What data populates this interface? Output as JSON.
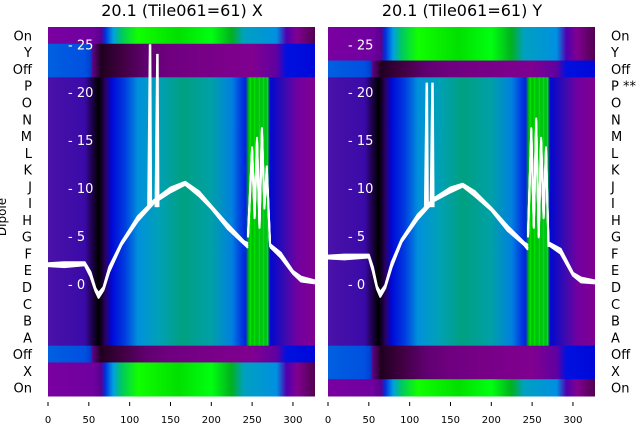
{
  "chart_data": [
    {
      "type": "heatmap",
      "title": "20.1 (Tile061=61) X",
      "ylabel": "Dipole",
      "row_labels": [
        "On",
        "Y",
        "Off",
        "P",
        "O",
        "N",
        "M",
        "L",
        "K",
        "J",
        "I",
        "H",
        "G",
        "F",
        "E",
        "D",
        "C",
        "B",
        "A",
        "Off",
        "X",
        "On"
      ],
      "row_kinds": [
        "on",
        "off",
        "off",
        "main",
        "main",
        "main",
        "main",
        "main",
        "main",
        "main",
        "main",
        "main",
        "main",
        "main",
        "main",
        "main",
        "main",
        "main",
        "main",
        "off",
        "on",
        "on"
      ],
      "x_ticks": [
        0,
        50,
        100,
        150,
        200,
        250,
        300
      ],
      "xlim": [
        0,
        327
      ],
      "inner_y_ticks": [
        0,
        5,
        10,
        15,
        20,
        25
      ],
      "inner_ylim": [
        -11.7,
        26.8
      ],
      "overlay_lines": [
        {
          "x": [
            0,
            20,
            45,
            52,
            58,
            62,
            68,
            75,
            90,
            110,
            130,
            150,
            168,
            185,
            200,
            220,
            240,
            245
          ],
          "y": [
            2.0,
            2.0,
            2.1,
            1.0,
            -0.6,
            -1.2,
            -0.5,
            1.5,
            4.2,
            6.8,
            8.6,
            9.8,
            10.5,
            9.4,
            8.0,
            6.0,
            4.3,
            4.0
          ]
        },
        {
          "x": [
            245,
            250,
            253,
            256,
            259,
            262,
            265,
            268,
            272
          ],
          "y": [
            5,
            14,
            7,
            15,
            6,
            16,
            8,
            12,
            4
          ]
        },
        {
          "x": [
            272,
            285,
            300,
            310,
            327
          ],
          "y": [
            4.0,
            3.0,
            1.2,
            0.5,
            0.2
          ]
        }
      ],
      "spikes": [
        {
          "x": 125,
          "y": 25
        },
        {
          "x": 134,
          "y": 24
        }
      ]
    },
    {
      "type": "heatmap",
      "title": "20.1 (Tile061=61) Y",
      "row_labels": [
        "On",
        "Y",
        "Off",
        "P **",
        "O",
        "N",
        "M",
        "L",
        "K",
        "J",
        "I",
        "H",
        "G",
        "F",
        "E",
        "D",
        "C",
        "B",
        "A",
        "Off",
        "X",
        "On"
      ],
      "row_kinds": [
        "on",
        "on",
        "off",
        "main",
        "main",
        "main",
        "main",
        "main",
        "main",
        "main",
        "main",
        "main",
        "main",
        "main",
        "main",
        "main",
        "main",
        "main",
        "main",
        "off",
        "off",
        "on"
      ],
      "x_ticks": [
        0,
        50,
        100,
        150,
        200,
        250,
        300
      ],
      "xlim": [
        0,
        327
      ],
      "inner_y_ticks": [
        0,
        5,
        10,
        15,
        20,
        25
      ],
      "inner_ylim": [
        -11.7,
        26.8
      ],
      "overlay_lines": [
        {
          "x": [
            0,
            20,
            50,
            55,
            60,
            64,
            70,
            78,
            90,
            110,
            130,
            150,
            165,
            180,
            200,
            220,
            240,
            245
          ],
          "y": [
            2.8,
            2.8,
            2.9,
            1.5,
            -0.4,
            -1.1,
            -0.3,
            2,
            4.5,
            7.0,
            8.8,
            9.8,
            10.3,
            9.4,
            7.8,
            5.8,
            4.2,
            3.8
          ]
        },
        {
          "x": [
            245,
            249,
            252,
            255,
            258,
            261,
            264,
            267,
            270
          ],
          "y": [
            5,
            16,
            6,
            17,
            5,
            15,
            7,
            14,
            4
          ]
        },
        {
          "x": [
            270,
            285,
            300,
            310,
            327
          ],
          "y": [
            4.2,
            3.4,
            1.0,
            0.4,
            0.2
          ]
        }
      ],
      "spikes": [
        {
          "x": 121,
          "y": 21
        },
        {
          "x": 128,
          "y": 21
        }
      ]
    }
  ]
}
